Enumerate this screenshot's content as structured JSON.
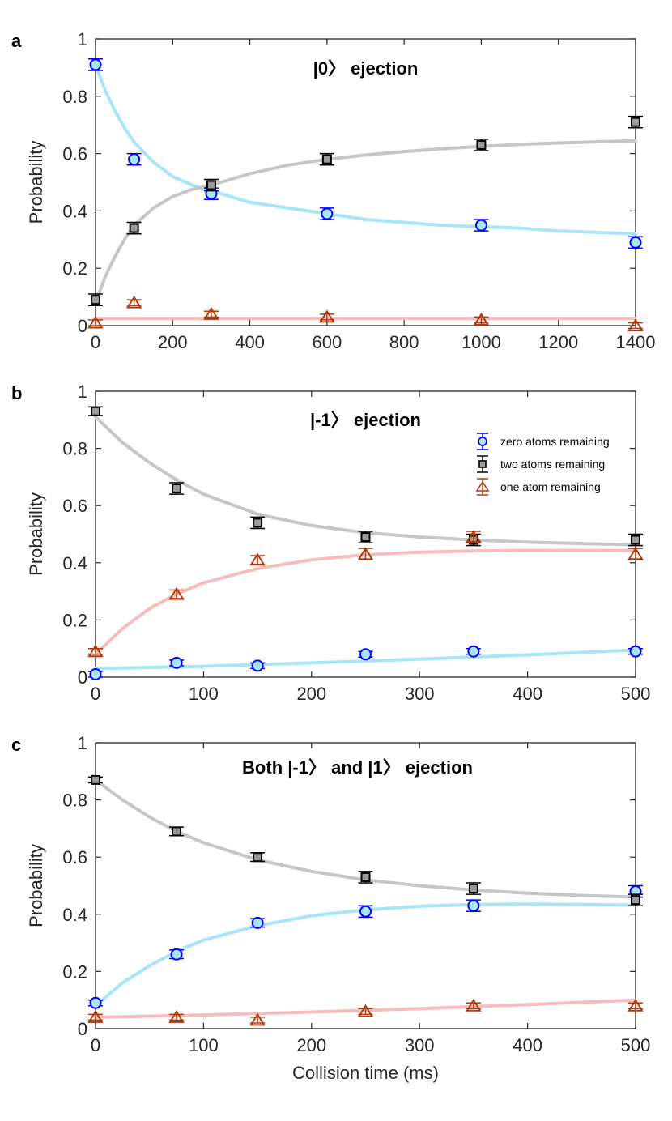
{
  "colors": {
    "zero_marker": "#0000ff",
    "zero_fill": "#a8e6f7",
    "zero_fit": "#a8e6f7",
    "two_marker": "#000000",
    "two_fill": "#9a9a9a",
    "two_fit": "#c6c6c6",
    "one_marker": "#b03a0e",
    "one_fit": "#f7bcbc"
  },
  "xlabel": "Collision time (ms)",
  "ylabel": "Probability",
  "chart_data": [
    {
      "type": "scatter",
      "panel": "a",
      "title": "|0〉 ejection",
      "xlim": [
        0,
        1400
      ],
      "ylim": [
        0,
        1
      ],
      "xticks": [
        "0",
        "200",
        "400",
        "600",
        "800",
        "1000",
        "1200",
        "1400"
      ],
      "xtick_values": [
        0,
        200,
        400,
        600,
        800,
        1000,
        1200,
        1400
      ],
      "yticks": [
        "0",
        "0.2",
        "0.4",
        "0.6",
        "0.8",
        "1"
      ],
      "ytick_values": [
        0,
        0.2,
        0.4,
        0.6,
        0.8,
        1
      ],
      "series": [
        {
          "name": "zero atoms remaining",
          "marker": "circle",
          "x": [
            0,
            100,
            300,
            600,
            1000,
            1400
          ],
          "y": [
            0.91,
            0.58,
            0.46,
            0.39,
            0.35,
            0.29
          ],
          "err": [
            0.02,
            0.02,
            0.02,
            0.02,
            0.02,
            0.02
          ],
          "fit_x": [
            0,
            25,
            50,
            75,
            100,
            150,
            200,
            250,
            300,
            400,
            500,
            600,
            700,
            800,
            900,
            1000,
            1100,
            1200,
            1300,
            1400
          ],
          "fit_y": [
            0.91,
            0.82,
            0.75,
            0.69,
            0.64,
            0.57,
            0.52,
            0.49,
            0.47,
            0.43,
            0.41,
            0.39,
            0.37,
            0.36,
            0.35,
            0.345,
            0.34,
            0.33,
            0.325,
            0.32
          ]
        },
        {
          "name": "two atoms remaining",
          "marker": "square",
          "x": [
            0,
            100,
            300,
            600,
            1000,
            1400
          ],
          "y": [
            0.09,
            0.34,
            0.49,
            0.58,
            0.63,
            0.71
          ],
          "err": [
            0.02,
            0.02,
            0.02,
            0.02,
            0.02,
            0.02
          ],
          "fit_x": [
            0,
            25,
            50,
            75,
            100,
            150,
            200,
            250,
            300,
            400,
            500,
            600,
            700,
            800,
            900,
            1000,
            1100,
            1200,
            1300,
            1400
          ],
          "fit_y": [
            0.08,
            0.17,
            0.24,
            0.3,
            0.35,
            0.41,
            0.45,
            0.475,
            0.49,
            0.53,
            0.56,
            0.58,
            0.595,
            0.607,
            0.617,
            0.625,
            0.632,
            0.637,
            0.641,
            0.645
          ]
        },
        {
          "name": "one atom remaining",
          "marker": "triangle",
          "x": [
            0,
            100,
            300,
            600,
            1000,
            1400
          ],
          "y": [
            0.01,
            0.08,
            0.04,
            0.03,
            0.02,
            0.0
          ],
          "err": [
            0.01,
            0.01,
            0.01,
            0.01,
            0.01,
            0.01
          ],
          "fit_x": [
            0,
            1400
          ],
          "fit_y": [
            0.025,
            0.025
          ]
        }
      ]
    },
    {
      "type": "scatter",
      "panel": "b",
      "title": "|-1〉 ejection",
      "xlim": [
        0,
        500
      ],
      "ylim": [
        0,
        1
      ],
      "xticks": [
        "0",
        "100",
        "200",
        "300",
        "400",
        "500"
      ],
      "xtick_values": [
        0,
        100,
        200,
        300,
        400,
        500
      ],
      "yticks": [
        "0",
        "0.2",
        "0.4",
        "0.6",
        "0.8",
        "1"
      ],
      "ytick_values": [
        0,
        0.2,
        0.4,
        0.6,
        0.8,
        1
      ],
      "legend": [
        "zero atoms remaining",
        "two atoms remaining",
        "one atom remaining"
      ],
      "series": [
        {
          "name": "zero atoms remaining",
          "marker": "circle",
          "x": [
            0,
            75,
            150,
            250,
            350,
            500
          ],
          "y": [
            0.01,
            0.05,
            0.04,
            0.08,
            0.09,
            0.09
          ],
          "err": [
            0.01,
            0.01,
            0.01,
            0.01,
            0.01,
            0.01
          ],
          "fit_x": [
            0,
            100,
            200,
            300,
            400,
            500
          ],
          "fit_y": [
            0.03,
            0.038,
            0.05,
            0.063,
            0.078,
            0.095
          ]
        },
        {
          "name": "two atoms remaining",
          "marker": "square",
          "x": [
            0,
            75,
            150,
            250,
            350,
            500
          ],
          "y": [
            0.93,
            0.66,
            0.54,
            0.49,
            0.48,
            0.48
          ],
          "err": [
            0.015,
            0.02,
            0.02,
            0.02,
            0.02,
            0.02
          ],
          "fit_x": [
            0,
            25,
            50,
            75,
            100,
            150,
            200,
            250,
            300,
            350,
            400,
            450,
            500
          ],
          "fit_y": [
            0.91,
            0.82,
            0.75,
            0.69,
            0.64,
            0.57,
            0.53,
            0.505,
            0.49,
            0.48,
            0.472,
            0.467,
            0.463
          ]
        },
        {
          "name": "one atom remaining",
          "marker": "triangle",
          "x": [
            0,
            75,
            150,
            250,
            350,
            500
          ],
          "y": [
            0.09,
            0.29,
            0.41,
            0.43,
            0.49,
            0.43
          ],
          "err": [
            0.01,
            0.015,
            0.015,
            0.02,
            0.02,
            0.02
          ],
          "fit_x": [
            0,
            25,
            50,
            75,
            100,
            150,
            200,
            250,
            300,
            350,
            400,
            450,
            500
          ],
          "fit_y": [
            0.08,
            0.17,
            0.24,
            0.29,
            0.33,
            0.38,
            0.41,
            0.428,
            0.437,
            0.441,
            0.443,
            0.443,
            0.443
          ]
        }
      ]
    },
    {
      "type": "scatter",
      "panel": "c",
      "title": "Both |-1〉 and |1〉 ejection",
      "xlim": [
        0,
        500
      ],
      "ylim": [
        0,
        1
      ],
      "xticks": [
        "0",
        "100",
        "200",
        "300",
        "400",
        "500"
      ],
      "xtick_values": [
        0,
        100,
        200,
        300,
        400,
        500
      ],
      "yticks": [
        "0",
        "0.2",
        "0.4",
        "0.6",
        "0.8",
        "1"
      ],
      "ytick_values": [
        0,
        0.2,
        0.4,
        0.6,
        0.8,
        1
      ],
      "series": [
        {
          "name": "zero atoms remaining",
          "marker": "circle",
          "x": [
            0,
            75,
            150,
            250,
            350,
            500
          ],
          "y": [
            0.09,
            0.26,
            0.37,
            0.41,
            0.43,
            0.48
          ],
          "err": [
            0.01,
            0.015,
            0.015,
            0.02,
            0.02,
            0.02
          ],
          "fit_x": [
            0,
            25,
            50,
            75,
            100,
            150,
            200,
            250,
            300,
            350,
            400,
            450,
            500
          ],
          "fit_y": [
            0.08,
            0.16,
            0.22,
            0.27,
            0.31,
            0.36,
            0.395,
            0.416,
            0.428,
            0.434,
            0.436,
            0.434,
            0.432
          ]
        },
        {
          "name": "two atoms remaining",
          "marker": "square",
          "x": [
            0,
            75,
            150,
            250,
            350,
            500
          ],
          "y": [
            0.87,
            0.69,
            0.6,
            0.53,
            0.49,
            0.45
          ],
          "err": [
            0.01,
            0.015,
            0.015,
            0.02,
            0.02,
            0.02
          ],
          "fit_x": [
            0,
            25,
            50,
            75,
            100,
            150,
            200,
            250,
            300,
            350,
            400,
            450,
            500
          ],
          "fit_y": [
            0.87,
            0.8,
            0.74,
            0.69,
            0.65,
            0.59,
            0.55,
            0.52,
            0.5,
            0.485,
            0.474,
            0.466,
            0.46
          ]
        },
        {
          "name": "one atom remaining",
          "marker": "triangle",
          "x": [
            0,
            75,
            150,
            250,
            350,
            500
          ],
          "y": [
            0.04,
            0.04,
            0.03,
            0.06,
            0.08,
            0.08
          ],
          "err": [
            0.01,
            0.01,
            0.01,
            0.01,
            0.01,
            0.01
          ],
          "fit_x": [
            0,
            100,
            200,
            300,
            400,
            500
          ],
          "fit_y": [
            0.04,
            0.048,
            0.058,
            0.07,
            0.084,
            0.1
          ]
        }
      ]
    }
  ]
}
